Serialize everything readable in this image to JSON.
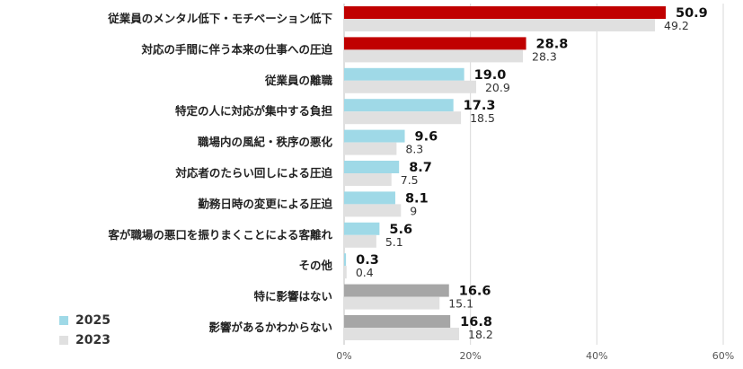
{
  "chart_data": {
    "type": "bar",
    "orientation": "horizontal",
    "categories": [
      "従業員のメンタル低下・モチベーション低下",
      "対応の手間に伴う本来の仕事への圧迫",
      "従業員の離職",
      "特定の人に対応が集中する負担",
      "職場内の風紀・秩序の悪化",
      "対応者のたらい回しによる圧迫",
      "勤務日時の変更による圧迫",
      "客が職場の悪口を振りまくことによる客離れ",
      "その他",
      "特に影響はない",
      "影響があるかわからない"
    ],
    "series": [
      {
        "name": "2025",
        "values": [
          50.9,
          28.8,
          19.0,
          17.3,
          9.6,
          8.7,
          8.1,
          5.6,
          0.3,
          16.6,
          16.8
        ],
        "labels": [
          "50.9",
          "28.8",
          "19.0",
          "17.3",
          "9.6",
          "8.7",
          "8.1",
          "5.6",
          "0.3",
          "16.6",
          "16.8"
        ],
        "bar_colors": [
          "#c00000",
          "#c00000",
          "#9fd9e7",
          "#9fd9e7",
          "#9fd9e7",
          "#9fd9e7",
          "#9fd9e7",
          "#9fd9e7",
          "#9fd9e7",
          "#a6a6a6",
          "#a6a6a6"
        ],
        "legend_color": "#9fd9e7"
      },
      {
        "name": "2023",
        "values": [
          49.2,
          28.3,
          20.9,
          18.5,
          8.3,
          7.5,
          9,
          5.1,
          0.4,
          15.1,
          18.2
        ],
        "labels": [
          "49.2",
          "28.3",
          "20.9",
          "18.5",
          "8.3",
          "7.5",
          "9",
          "5.1",
          "0.4",
          "15.1",
          "18.2"
        ],
        "bar_colors": [
          "#e0e0e0",
          "#e0e0e0",
          "#e0e0e0",
          "#e0e0e0",
          "#e0e0e0",
          "#e0e0e0",
          "#e0e0e0",
          "#e0e0e0",
          "#e0e0e0",
          "#e0e0e0",
          "#e0e0e0"
        ],
        "legend_color": "#e0e0e0"
      }
    ],
    "xlim": [
      0,
      60
    ],
    "ticks": [
      0,
      20,
      40,
      60
    ],
    "tick_labels": [
      "0%",
      "20%",
      "40%",
      "60%"
    ],
    "grid": true,
    "gridline_color": "#d9d9d9",
    "legend_position": "bottom-left"
  }
}
